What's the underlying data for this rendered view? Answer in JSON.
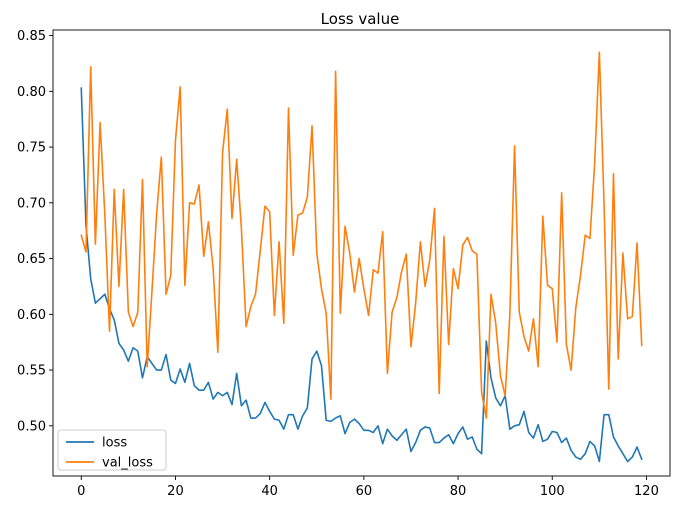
{
  "chart_data": {
    "type": "line",
    "title": "Loss value",
    "xlabel": "",
    "ylabel": "",
    "xlim": [
      -6,
      125
    ],
    "ylim": [
      0.455,
      0.855
    ],
    "xticks": [
      0,
      20,
      40,
      60,
      80,
      100,
      120
    ],
    "yticks": [
      0.45,
      0.5,
      0.55,
      0.6,
      0.65,
      0.7,
      0.75,
      0.8,
      0.85
    ],
    "ytick_labels": [
      "0.45",
      "0.50",
      "0.55",
      "0.60",
      "0.65",
      "0.70",
      "0.75",
      "0.80",
      "0.85"
    ],
    "grid": false,
    "legend_position": "lower-left",
    "series": [
      {
        "name": "loss",
        "color": "#1f77b4",
        "values": [
          0.803,
          0.68,
          0.632,
          0.61,
          0.614,
          0.618,
          0.605,
          0.595,
          0.574,
          0.568,
          0.558,
          0.57,
          0.567,
          0.543,
          0.562,
          0.556,
          0.55,
          0.55,
          0.564,
          0.541,
          0.538,
          0.551,
          0.539,
          0.556,
          0.536,
          0.532,
          0.532,
          0.539,
          0.524,
          0.53,
          0.527,
          0.53,
          0.519,
          0.547,
          0.518,
          0.523,
          0.507,
          0.507,
          0.511,
          0.521,
          0.513,
          0.506,
          0.505,
          0.497,
          0.51,
          0.51,
          0.497,
          0.509,
          0.516,
          0.56,
          0.567,
          0.554,
          0.505,
          0.504,
          0.507,
          0.509,
          0.493,
          0.503,
          0.506,
          0.502,
          0.496,
          0.496,
          0.494,
          0.5,
          0.484,
          0.497,
          0.491,
          0.487,
          0.492,
          0.497,
          0.477,
          0.485,
          0.496,
          0.499,
          0.498,
          0.485,
          0.485,
          0.489,
          0.492,
          0.484,
          0.493,
          0.499,
          0.488,
          0.49,
          0.479,
          0.475,
          0.576,
          0.543,
          0.525,
          0.518,
          0.527,
          0.497,
          0.5,
          0.501,
          0.513,
          0.494,
          0.489,
          0.501,
          0.486,
          0.488,
          0.495,
          0.494,
          0.485,
          0.489,
          0.478,
          0.472,
          0.47,
          0.475,
          0.486,
          0.482,
          0.468,
          0.51,
          0.51,
          0.49,
          0.482,
          0.475,
          0.468,
          0.472,
          0.481,
          0.47
        ]
      },
      {
        "name": "val_loss",
        "color": "#ff7f0e",
        "values": [
          0.671,
          0.656,
          0.822,
          0.663,
          0.772,
          0.69,
          0.585,
          0.712,
          0.625,
          0.712,
          0.602,
          0.589,
          0.602,
          0.721,
          0.553,
          0.62,
          0.69,
          0.741,
          0.618,
          0.635,
          0.756,
          0.804,
          0.626,
          0.7,
          0.699,
          0.716,
          0.652,
          0.683,
          0.641,
          0.566,
          0.745,
          0.784,
          0.686,
          0.739,
          0.677,
          0.589,
          0.607,
          0.618,
          0.657,
          0.697,
          0.692,
          0.599,
          0.665,
          0.592,
          0.785,
          0.653,
          0.689,
          0.691,
          0.705,
          0.769,
          0.655,
          0.623,
          0.601,
          0.524,
          0.818,
          0.601,
          0.679,
          0.655,
          0.62,
          0.65,
          0.623,
          0.599,
          0.64,
          0.637,
          0.674,
          0.547,
          0.602,
          0.615,
          0.638,
          0.654,
          0.571,
          0.61,
          0.665,
          0.625,
          0.649,
          0.695,
          0.529,
          0.67,
          0.573,
          0.641,
          0.623,
          0.662,
          0.669,
          0.657,
          0.654,
          0.53,
          0.507,
          0.618,
          0.592,
          0.545,
          0.527,
          0.6,
          0.751,
          0.602,
          0.58,
          0.567,
          0.596,
          0.553,
          0.688,
          0.626,
          0.623,
          0.575,
          0.709,
          0.573,
          0.55,
          0.606,
          0.635,
          0.671,
          0.668,
          0.735,
          0.835,
          0.698,
          0.533,
          0.726,
          0.56,
          0.655,
          0.596,
          0.598,
          0.664,
          0.572
        ]
      }
    ]
  }
}
